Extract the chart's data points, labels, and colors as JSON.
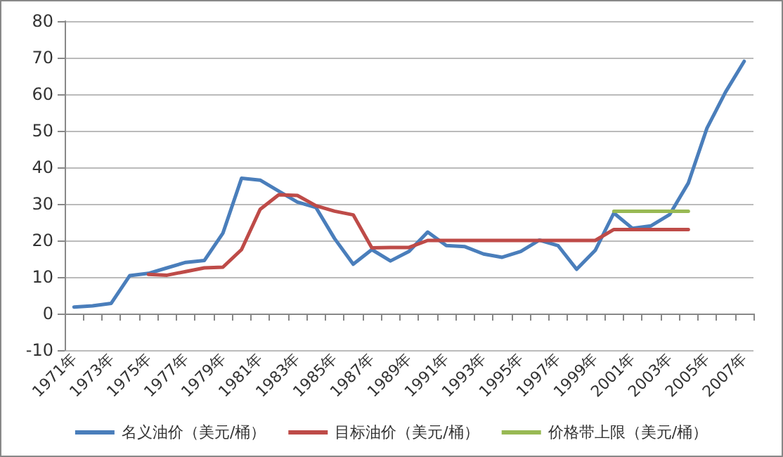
{
  "chart_data": {
    "type": "line",
    "categories": [
      "1971年",
      null,
      "1973年",
      null,
      "1975年",
      null,
      "1977年",
      null,
      "1979年",
      null,
      "1981年",
      null,
      "1983年",
      null,
      "1985年",
      null,
      "1987年",
      null,
      "1989年",
      null,
      "1991年",
      null,
      "1993年",
      null,
      "1995年",
      null,
      "1997年",
      null,
      "1999年",
      null,
      "2001年",
      null,
      "2003年",
      null,
      "2005年",
      null,
      "2007年"
    ],
    "series": [
      {
        "name": "名义油价（美元/桶）",
        "color": "#4a7ebb",
        "values": [
          1.8,
          2.1,
          2.8,
          10.4,
          11,
          12.5,
          14,
          14.5,
          22,
          37,
          36.5,
          33.5,
          30.5,
          29,
          20.5,
          13.5,
          17.5,
          14.4,
          17,
          22.3,
          18.6,
          18.3,
          16.3,
          15.4,
          17,
          20.1,
          18.6,
          12.1,
          17.3,
          27.5,
          23.3,
          24,
          27.1,
          35.7,
          50.7,
          60.6,
          69
        ]
      },
      {
        "name": "目标油价（美元/桶）",
        "color": "#be4b48",
        "values": [
          null,
          null,
          null,
          null,
          10.7,
          10.5,
          11.5,
          12.5,
          12.7,
          17.5,
          28.5,
          32.5,
          32.3,
          29.5,
          28,
          27,
          18,
          18.1,
          18.1,
          20,
          20,
          20,
          20,
          20,
          20,
          20,
          20,
          20,
          20,
          23,
          23,
          23,
          23,
          23,
          null,
          null,
          null
        ]
      },
      {
        "name": "价格带上限（美元/桶）",
        "color": "#98b954",
        "values": [
          null,
          null,
          null,
          null,
          null,
          null,
          null,
          null,
          null,
          null,
          null,
          null,
          null,
          null,
          null,
          null,
          null,
          null,
          null,
          null,
          null,
          null,
          null,
          null,
          null,
          null,
          null,
          null,
          null,
          28,
          28,
          28,
          28,
          28,
          null,
          null,
          null
        ]
      }
    ],
    "ylim": [
      -10,
      80
    ],
    "yticks": [
      -10,
      0,
      10,
      20,
      30,
      40,
      50,
      60,
      70,
      80
    ],
    "grid": "y",
    "legend": "bottom",
    "marker": "none",
    "line_style": "solid"
  }
}
